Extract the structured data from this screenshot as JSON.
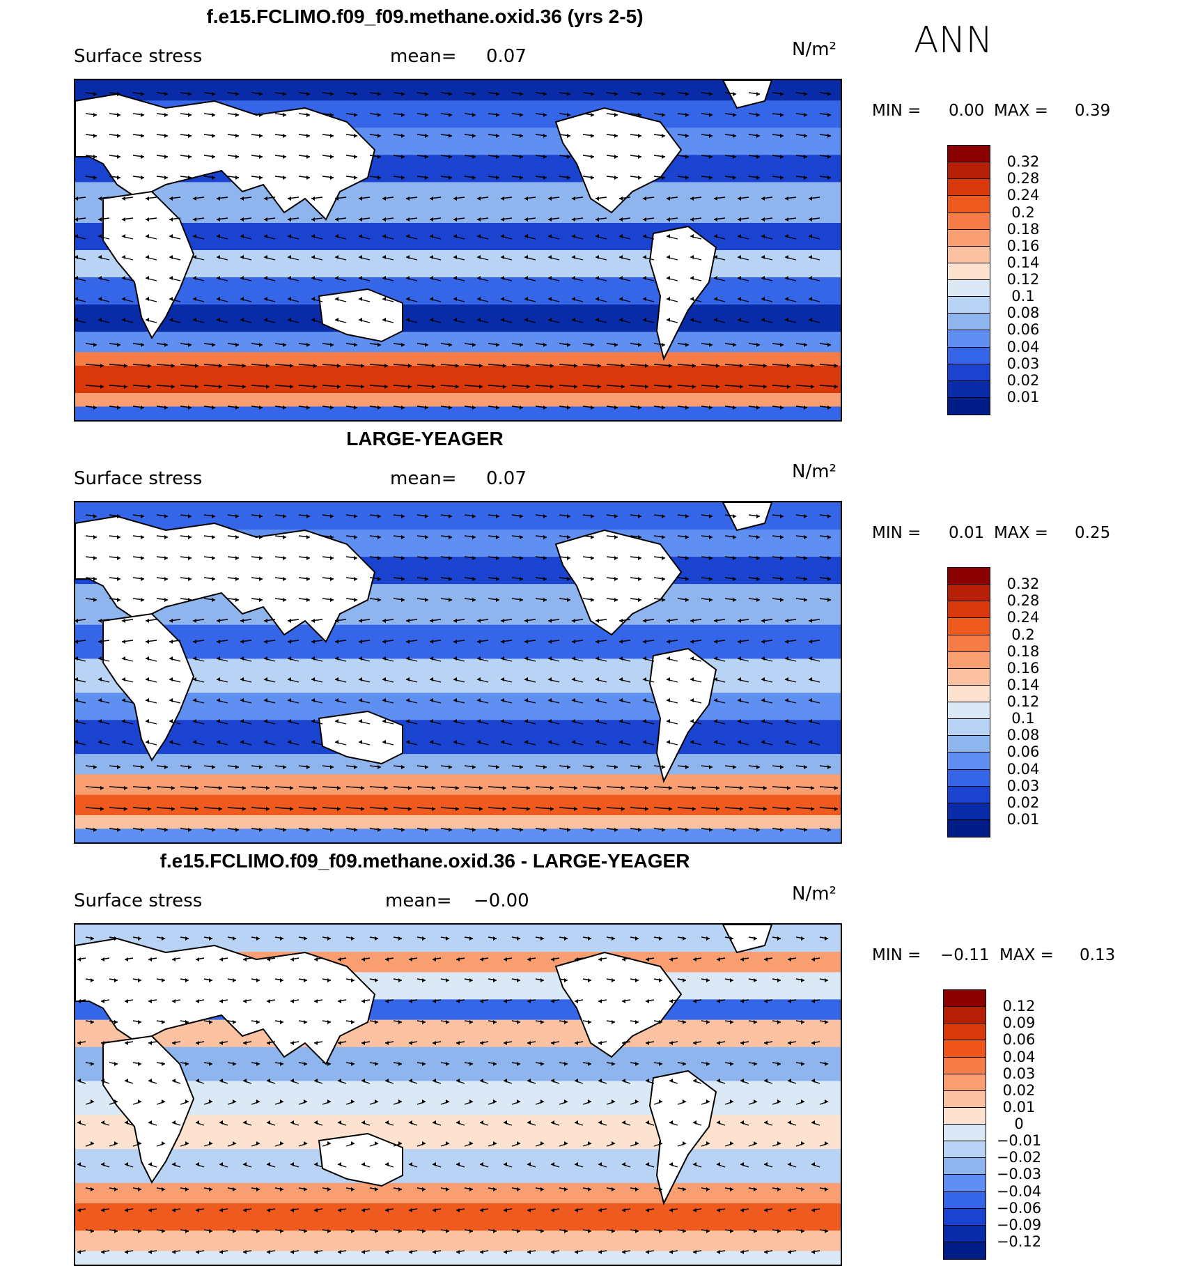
{
  "overall_label": "ANN",
  "panels": [
    {
      "title": "f.e15.FCLIMO.f09_f09.methane.oxid.36 (yrs 2-5)",
      "left_label": "Surface stress",
      "mean_label": "mean=",
      "mean_value": "0.07",
      "units": "N/m²",
      "min_label": "MIN =",
      "min_value": "0.00",
      "max_label": "MAX =",
      "max_value": "0.39",
      "colorbar_levels": [
        "0.32",
        "0.28",
        "0.24",
        "0.2",
        "0.18",
        "0.16",
        "0.14",
        "0.12",
        "0.1",
        "0.08",
        "0.06",
        "0.04",
        "0.03",
        "0.02",
        "0.01"
      ],
      "colorbar_colors": [
        "#8b0000",
        "#b51f05",
        "#d9380a",
        "#ef5a1e",
        "#f57c46",
        "#f99e70",
        "#fbc2a2",
        "#fde3cf",
        "#dbe9f7",
        "#b8d3f3",
        "#8fb5ef",
        "#5f8ff0",
        "#3566e8",
        "#1a44d0",
        "#0a2ba8",
        "#001d87"
      ]
    },
    {
      "title": "LARGE-YEAGER",
      "left_label": "Surface stress",
      "mean_label": "mean=",
      "mean_value": "0.07",
      "units": "N/m²",
      "min_label": "MIN =",
      "min_value": "0.01",
      "max_label": "MAX =",
      "max_value": "0.25",
      "colorbar_levels": [
        "0.32",
        "0.28",
        "0.24",
        "0.2",
        "0.18",
        "0.16",
        "0.14",
        "0.12",
        "0.1",
        "0.08",
        "0.06",
        "0.04",
        "0.03",
        "0.02",
        "0.01"
      ],
      "colorbar_colors": [
        "#8b0000",
        "#b51f05",
        "#d9380a",
        "#ef5a1e",
        "#f57c46",
        "#f99e70",
        "#fbc2a2",
        "#fde3cf",
        "#dbe9f7",
        "#b8d3f3",
        "#8fb5ef",
        "#5f8ff0",
        "#3566e8",
        "#1a44d0",
        "#0a2ba8",
        "#001d87"
      ]
    },
    {
      "title": "f.e15.FCLIMO.f09_f09.methane.oxid.36 - LARGE-YEAGER",
      "left_label": "Surface stress",
      "mean_label": "mean=",
      "mean_value": "−0.00",
      "units": "N/m²",
      "min_label": "MIN =",
      "min_value": "−0.11",
      "max_label": "MAX =",
      "max_value": "0.13",
      "colorbar_levels": [
        "0.12",
        "0.09",
        "0.06",
        "0.04",
        "0.03",
        "0.02",
        "0.01",
        "0",
        "−0.01",
        "−0.02",
        "−0.03",
        "−0.04",
        "−0.06",
        "−0.09",
        "−0.12"
      ],
      "colorbar_colors": [
        "#8b0000",
        "#b51f05",
        "#d9380a",
        "#f0561a",
        "#f57c46",
        "#f99e70",
        "#fbc2a2",
        "#fde3cf",
        "#dbe9f7",
        "#b8d3f3",
        "#8fb5ef",
        "#5f8ff0",
        "#3566e8",
        "#1a44d0",
        "#0a2ba8",
        "#001d87"
      ]
    }
  ],
  "chart_data": {
    "type": "heatmap",
    "description_fields": "global filled-contour maps of annual mean surface wind stress with stress vectors",
    "panels": [
      {
        "title": "f.e15.FCLIMO.f09_f09.methane.oxid.36 (yrs 2-5)",
        "mean": 0.07,
        "min": 0.0,
        "max": 0.39,
        "units": "N/m²"
      },
      {
        "title": "LARGE-YEAGER",
        "mean": 0.07,
        "min": 0.01,
        "max": 0.25,
        "units": "N/m²"
      },
      {
        "title": "f.e15.FCLIMO.f09_f09.methane.oxid.36 - LARGE-YEAGER",
        "mean": -0.0,
        "min": -0.11,
        "max": 0.13,
        "units": "N/m²"
      }
    ]
  }
}
